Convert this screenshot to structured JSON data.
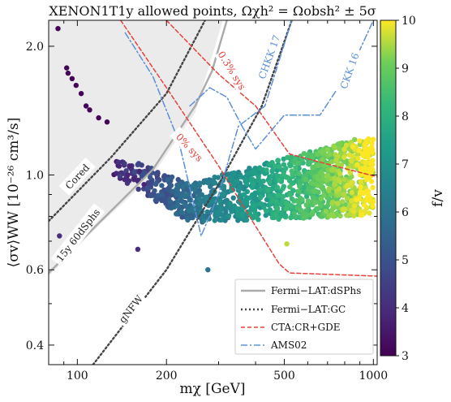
{
  "chart_data": {
    "type": "scatter",
    "title": "XENON1T1y allowed points,  Ωχh² = Ωobsh² ± 5σ",
    "xlabel": "mχ [GeV]",
    "ylabel": "⟨σv⟩WW [10⁻²⁶ cm³/s]",
    "xscale": "log",
    "yscale": "log",
    "xlim": [
      80,
      1030
    ],
    "ylim": [
      0.36,
      2.3
    ],
    "x_ticks": [
      100,
      200,
      500,
      1000
    ],
    "x_tick_labels": [
      "100",
      "200",
      "500",
      "1000"
    ],
    "y_ticks": [
      0.4,
      0.6,
      1.0,
      2.0
    ],
    "y_tick_labels": [
      "0.4",
      "0.6",
      "1.0",
      "2.0"
    ],
    "colorbar": {
      "label": "f/v",
      "range": [
        3,
        10
      ],
      "ticks": [
        3,
        4,
        5,
        6,
        7,
        8,
        9,
        10
      ],
      "colormap": "viridis"
    },
    "excluded_region": {
      "fill": "#ebebeb",
      "boundary": [
        [
          80,
          0.58
        ],
        [
          120,
          0.77
        ],
        [
          180,
          1.0
        ],
        [
          250,
          1.4
        ],
        [
          310,
          2.3
        ]
      ]
    },
    "series": [
      {
        "name": "Fermi−LAT:dSPhs",
        "style": "solid",
        "color": "#aaaaaa",
        "points": [
          [
            80,
            0.59
          ],
          [
            120,
            0.78
          ],
          [
            180,
            1.03
          ],
          [
            250,
            1.45
          ],
          [
            285,
            1.75
          ],
          [
            320,
            2.3
          ]
        ]
      },
      {
        "name": "Fermi−LAT:GC",
        "style": "dotted",
        "color": "#444444",
        "curves": [
          [
            [
              80,
              0.78
            ],
            [
              130,
              1.1
            ],
            [
              200,
              1.55
            ],
            [
              270,
              2.3
            ]
          ],
          [
            [
              113,
              0.36
            ],
            [
              200,
              0.6
            ],
            [
              300,
              0.95
            ],
            [
              420,
              1.45
            ],
            [
              530,
              2.3
            ]
          ]
        ]
      },
      {
        "name": "CTA:CR+GDE",
        "style": "dashed",
        "color": "#e8413a",
        "curves": [
          [
            [
              140,
              2.3
            ],
            [
              200,
              1.6
            ],
            [
              300,
              1.05
            ],
            [
              390,
              0.78
            ],
            [
              480,
              0.62
            ],
            [
              520,
              0.59
            ],
            [
              1030,
              0.58
            ]
          ],
          [
            [
              200,
              2.3
            ],
            [
              300,
              1.72
            ],
            [
              400,
              1.45
            ],
            [
              520,
              1.12
            ],
            [
              700,
              1.06
            ],
            [
              1030,
              0.99
            ]
          ]
        ]
      },
      {
        "name": "AMS02",
        "style": "dashdot",
        "color": "#5b8fd8",
        "curves": [
          [
            [
              145,
              2.15
            ],
            [
              180,
              1.7
            ],
            [
              220,
              1.2
            ],
            [
              262,
              0.72
            ],
            [
              300,
              0.9
            ],
            [
              350,
              1.3
            ],
            [
              430,
              1.45
            ],
            [
              530,
              2.3
            ]
          ],
          [
            [
              240,
              1.45
            ],
            [
              280,
              1.6
            ],
            [
              320,
              1.52
            ],
            [
              360,
              1.3
            ],
            [
              400,
              1.15
            ],
            [
              500,
              1.38
            ],
            [
              660,
              1.38
            ],
            [
              850,
              1.8
            ],
            [
              1000,
              2.3
            ]
          ]
        ]
      }
    ],
    "point_clusters": [
      {
        "fv": 3.1,
        "points": [
          [
            86,
            2.2
          ],
          [
            92,
            1.78
          ],
          [
            93,
            1.73
          ],
          [
            96,
            1.68
          ],
          [
            99,
            1.62
          ],
          [
            103,
            1.55
          ],
          [
            107,
            1.45
          ],
          [
            110,
            1.42
          ],
          [
            118,
            1.36
          ],
          [
            126,
            1.33
          ]
        ]
      },
      {
        "fv": 3.8,
        "points": [
          [
            148,
            1.0
          ],
          [
            150,
            1.05
          ],
          [
            155,
            0.98
          ],
          [
            160,
            0.97
          ],
          [
            162,
            1.02
          ],
          [
            168,
            0.95
          ]
        ]
      },
      {
        "fv": 4.0,
        "points": [
          [
            87,
            0.72
          ],
          [
            160,
            0.67
          ]
        ]
      },
      {
        "fv": 6.0,
        "points": [
          [
            276,
            0.6
          ]
        ]
      },
      {
        "fv": 9.6,
        "points": [
          [
            510,
            0.69
          ]
        ]
      }
    ],
    "band": {
      "x_range": [
        130,
        1000
      ],
      "fv_range": [
        3.8,
        10
      ]
    },
    "annotations": [
      {
        "text": "Cored",
        "color": "#222222"
      },
      {
        "text": "15y 60dSphs",
        "color": "#222222"
      },
      {
        "text": "gNFW",
        "color": "#222222"
      },
      {
        "text": "0.3% sys",
        "color": "#e8413a"
      },
      {
        "text": "0% sys",
        "color": "#e8413a"
      },
      {
        "text": "CHKK 17",
        "color": "#5b8fd8"
      },
      {
        "text": "CKK 16",
        "color": "#5b8fd8"
      }
    ],
    "legend_position": "bottom-right"
  }
}
